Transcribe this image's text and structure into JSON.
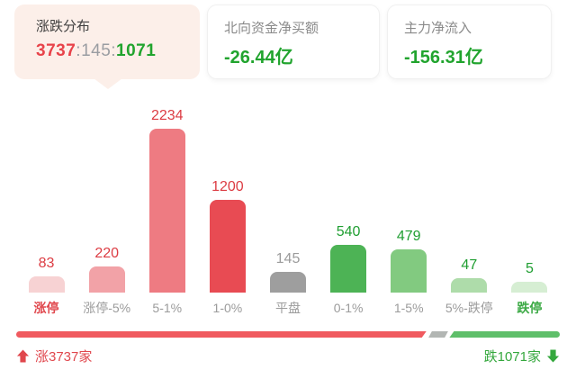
{
  "header": {
    "distribution_card": {
      "title": "涨跌分布",
      "up_count": "3737",
      "flat_count": "145",
      "down_count": "1071",
      "separator": ":"
    },
    "northbound_card": {
      "title": "北向资金净买额",
      "value": "-26.44亿"
    },
    "main_force_card": {
      "title": "主力净流入",
      "value": "-156.31亿"
    }
  },
  "chart_data": {
    "type": "bar",
    "title": "涨跌分布",
    "categories": [
      "涨停",
      "涨停-5%",
      "5-1%",
      "1-0%",
      "平盘",
      "0-1%",
      "1-5%",
      "5%-跌停",
      "跌停"
    ],
    "values": [
      83,
      220,
      2234,
      1200,
      145,
      540,
      479,
      47,
      5
    ],
    "ylim": [
      0,
      2234
    ],
    "grid": false,
    "legend": "none",
    "bar_colors": [
      "#f7d2d3",
      "#f2a2a7",
      "#ee7b82",
      "#e84b53",
      "#9e9e9e",
      "#4db355",
      "#82ca80",
      "#aedcaa",
      "#d6eed3"
    ],
    "value_colors": [
      "#dc3c43",
      "#dc3c43",
      "#dc3c43",
      "#dc3c43",
      "#9b9b9b",
      "#1f9e31",
      "#1f9e31",
      "#1f9e31",
      "#1f9e31"
    ],
    "label_colors": [
      "#e0484e",
      "#9b9b9b",
      "#9b9b9b",
      "#9b9b9b",
      "#9b9b9b",
      "#9b9b9b",
      "#9b9b9b",
      "#9b9b9b",
      "#3ba944"
    ],
    "label_bold": [
      true,
      false,
      false,
      false,
      false,
      false,
      false,
      false,
      true
    ]
  },
  "footer": {
    "up_text": "涨3737家",
    "down_text": "跌1071家",
    "up_count": 3737,
    "flat_count": 145,
    "down_count": 1071,
    "segment_colors": {
      "up": "#f05a5f",
      "flat": "#b2b6b3",
      "down": "#5fbf6a"
    }
  },
  "colors": {
    "up_red": "#e8434a",
    "down_green": "#21a42e",
    "neutral_gray": "#9b9b9b",
    "distribution_card_bg": "#fcefe9"
  }
}
